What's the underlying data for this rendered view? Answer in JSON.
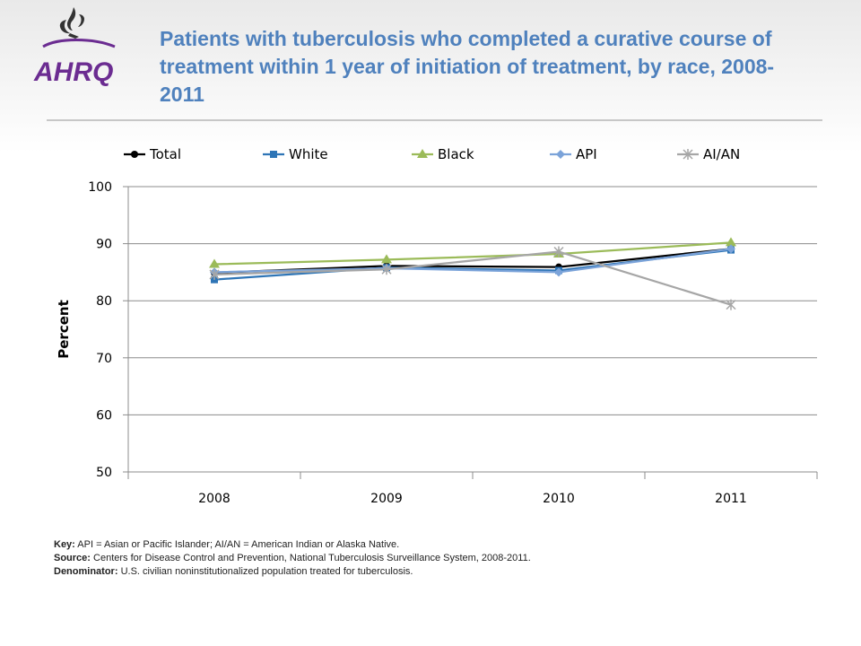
{
  "header": {
    "title": "Patients with tuberculosis who completed a curative course of treatment within 1 year of initiation of treatment, by race, 2008-2011",
    "logo_text": "AHRQ",
    "logo_icon": "hhs-eagle-icon"
  },
  "colors": {
    "title": "#4f81bd",
    "Total": "#000000",
    "White": "#2e75b6",
    "Black": "#9bbb59",
    "API": "#7ba3d9",
    "AI/AN": "#a6a6a6"
  },
  "chart_data": {
    "type": "line",
    "title": "",
    "xlabel": "",
    "ylabel": "Percent",
    "ylim": [
      50,
      100
    ],
    "yticks": [
      50,
      60,
      70,
      80,
      90,
      100
    ],
    "grid": true,
    "legend_position": "top",
    "categories": [
      "2008",
      "2009",
      "2010",
      "2011"
    ],
    "series": [
      {
        "name": "Total",
        "marker": "circle",
        "values": [
          84.9,
          86.1,
          85.9,
          89.1
        ]
      },
      {
        "name": "White",
        "marker": "square",
        "values": [
          83.7,
          85.8,
          85.3,
          88.9
        ]
      },
      {
        "name": "Black",
        "marker": "triangle",
        "values": [
          86.4,
          87.2,
          88.2,
          90.2
        ]
      },
      {
        "name": "API",
        "marker": "diamond",
        "values": [
          85.0,
          85.7,
          85.0,
          89.1
        ]
      },
      {
        "name": "AI/AN",
        "marker": "star",
        "values": [
          84.6,
          85.5,
          88.6,
          79.3
        ]
      }
    ]
  },
  "notes": {
    "key_label": "Key:",
    "key_text": "API = Asian or Pacific Islander; AI/AN = American Indian or Alaska Native.",
    "source_label": "Source:",
    "source_text": "Centers for Disease Control and Prevention, National Tuberculosis Surveillance System, 2008-2011.",
    "denominator_label": "Denominator:",
    "denominator_text": "U.S. civilian noninstitutionalized population treated for tuberculosis."
  }
}
